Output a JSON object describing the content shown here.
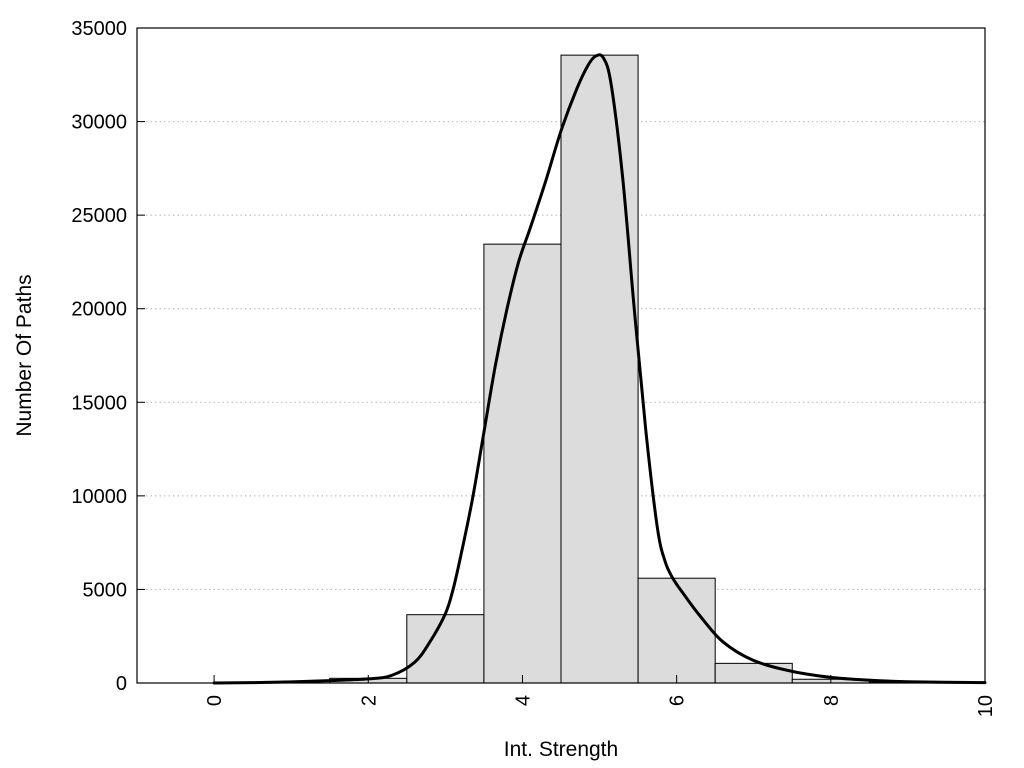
{
  "chart_data": {
    "type": "bar",
    "title": "",
    "xlabel": "Int. Strength",
    "ylabel": "Number Of Paths",
    "xlim": [
      -1,
      10
    ],
    "ylim": [
      0,
      35000
    ],
    "grid": true,
    "legend": "none",
    "x_ticks": [
      0,
      2,
      4,
      6,
      8,
      10
    ],
    "x_tick_labels": [
      "0",
      "2",
      "4",
      "6",
      "8",
      "10"
    ],
    "y_ticks": [
      0,
      5000,
      10000,
      15000,
      20000,
      25000,
      30000,
      35000
    ],
    "y_tick_labels": [
      "0",
      "5000",
      "10000",
      "15000",
      "20000",
      "25000",
      "30000",
      "35000"
    ],
    "bars": [
      {
        "x": 0,
        "value": 0
      },
      {
        "x": 1,
        "value": 0
      },
      {
        "x": 2,
        "value": 250
      },
      {
        "x": 3,
        "value": 3650
      },
      {
        "x": 4,
        "value": 23450
      },
      {
        "x": 5,
        "value": 33550
      },
      {
        "x": 6,
        "value": 5600
      },
      {
        "x": 7,
        "value": 1050
      },
      {
        "x": 8,
        "value": 200
      },
      {
        "x": 9,
        "value": 50
      }
    ],
    "bar_width": 1,
    "curve": {
      "x": [
        0,
        0.5,
        1,
        1.5,
        2,
        2.3,
        2.6,
        2.8,
        3.0,
        3.1,
        3.2,
        3.35,
        3.5,
        3.65,
        3.8,
        3.95,
        4.1,
        4.3,
        4.5,
        4.7,
        4.85,
        4.95,
        5.05,
        5.15,
        5.3,
        5.45,
        5.6,
        5.75,
        5.85,
        5.95,
        6.1,
        6.3,
        6.6,
        7.0,
        7.5,
        8.0,
        8.5,
        9.0,
        10.0
      ],
      "y": [
        0,
        20,
        60,
        130,
        220,
        400,
        1100,
        2200,
        3700,
        5000,
        6800,
        9800,
        13400,
        17000,
        20000,
        22500,
        24300,
        26800,
        29500,
        31700,
        33000,
        33500,
        33400,
        32000,
        27000,
        20000,
        13500,
        8300,
        6500,
        5600,
        4700,
        3600,
        2200,
        1200,
        620,
        300,
        150,
        70,
        20
      ]
    },
    "colors": {
      "bar_fill": "#dcdcdc",
      "bar_stroke": "#000000",
      "curve": "#000000",
      "grid": "#b4b4b4"
    }
  }
}
